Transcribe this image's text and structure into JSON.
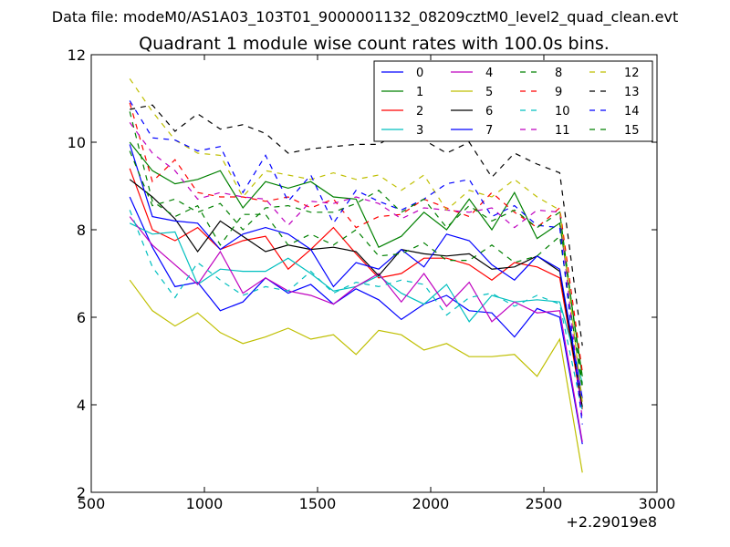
{
  "chart_data": {
    "type": "line",
    "suptitle": "Data file: modeM0/AS1A03_103T01_9000001132_08209cztM0_level2_quad_clean.evt",
    "title": "Quadrant 1 module wise count rates with 100.0s bins.",
    "xlabel": "",
    "ylabel": "",
    "x_offset_label": "+2.29019e8",
    "xlim": [
      500,
      3000
    ],
    "ylim": [
      2,
      12
    ],
    "xticks": [
      500,
      1000,
      1500,
      2000,
      2500,
      3000
    ],
    "yticks": [
      2,
      4,
      6,
      8,
      10,
      12
    ],
    "x": [
      670,
      770,
      870,
      970,
      1070,
      1170,
      1270,
      1370,
      1470,
      1570,
      1670,
      1770,
      1870,
      1970,
      2070,
      2170,
      2270,
      2370,
      2470,
      2570,
      2670
    ],
    "series": [
      {
        "name": "0",
        "color": "#0000ff",
        "dash": "solid",
        "values": [
          8.75,
          7.6,
          6.7,
          6.8,
          6.15,
          6.35,
          6.9,
          6.55,
          6.75,
          6.3,
          6.65,
          6.4,
          5.95,
          6.3,
          6.5,
          6.15,
          6.1,
          5.55,
          6.2,
          6.0,
          3.1
        ]
      },
      {
        "name": "1",
        "color": "#008000",
        "dash": "solid",
        "values": [
          10.0,
          9.35,
          9.05,
          9.15,
          9.35,
          8.5,
          9.1,
          8.95,
          9.1,
          8.75,
          8.7,
          7.6,
          7.85,
          8.4,
          8.0,
          8.7,
          8.0,
          8.85,
          7.8,
          8.15,
          4.65
        ]
      },
      {
        "name": "2",
        "color": "#ff0000",
        "dash": "solid",
        "values": [
          9.4,
          8.0,
          7.75,
          8.05,
          7.55,
          7.75,
          7.85,
          7.1,
          7.55,
          8.05,
          7.45,
          6.9,
          7.0,
          7.35,
          7.35,
          7.2,
          6.85,
          7.25,
          7.15,
          6.9,
          3.9
        ]
      },
      {
        "name": "3",
        "color": "#00bfbf",
        "dash": "solid",
        "values": [
          8.15,
          7.9,
          7.95,
          6.75,
          7.1,
          7.05,
          7.05,
          7.35,
          7.0,
          6.6,
          6.7,
          6.95,
          6.55,
          6.3,
          6.75,
          5.9,
          6.5,
          6.35,
          6.4,
          6.35,
          4.5
        ]
      },
      {
        "name": "4",
        "color": "#bf00bf",
        "dash": "solid",
        "values": [
          8.3,
          7.65,
          7.2,
          6.75,
          7.5,
          6.55,
          6.9,
          6.6,
          6.5,
          6.3,
          6.7,
          7.0,
          6.35,
          7.0,
          6.25,
          6.8,
          5.9,
          6.35,
          6.1,
          6.15,
          3.15
        ]
      },
      {
        "name": "5",
        "color": "#bfbf00",
        "dash": "solid",
        "values": [
          6.85,
          6.15,
          5.8,
          6.1,
          5.65,
          5.4,
          5.55,
          5.75,
          5.5,
          5.6,
          5.15,
          5.7,
          5.6,
          5.25,
          5.4,
          5.1,
          5.1,
          5.15,
          4.65,
          5.5,
          2.45
        ]
      },
      {
        "name": "6",
        "color": "#000000",
        "dash": "solid",
        "values": [
          9.15,
          8.75,
          8.25,
          7.5,
          8.2,
          7.85,
          7.5,
          7.65,
          7.55,
          7.6,
          7.5,
          6.95,
          7.55,
          7.45,
          7.4,
          7.45,
          7.1,
          7.15,
          7.4,
          7.05,
          3.95
        ]
      },
      {
        "name": "7",
        "color": "#0000ff",
        "dash": "solid",
        "values": [
          9.95,
          8.3,
          8.2,
          8.15,
          7.55,
          7.9,
          8.05,
          7.9,
          7.55,
          6.7,
          7.25,
          7.1,
          7.55,
          7.15,
          7.9,
          7.75,
          7.2,
          6.85,
          7.4,
          7.1,
          4.15
        ]
      },
      {
        "name": "8",
        "color": "#008000",
        "dash": "dashed",
        "values": [
          10.7,
          8.65,
          8.3,
          8.55,
          7.65,
          8.35,
          8.35,
          7.65,
          7.9,
          7.65,
          8.0,
          7.4,
          7.45,
          7.7,
          7.3,
          7.3,
          7.65,
          7.25,
          7.4,
          7.85,
          4.35
        ]
      },
      {
        "name": "9",
        "color": "#ff0000",
        "dash": "dashed",
        "values": [
          10.9,
          9.1,
          9.6,
          8.85,
          8.75,
          8.75,
          8.65,
          8.75,
          8.5,
          8.7,
          8.05,
          8.3,
          8.35,
          8.7,
          8.5,
          8.3,
          8.85,
          8.4,
          8.05,
          8.5,
          4.75
        ]
      },
      {
        "name": "10",
        "color": "#00bfbf",
        "dash": "dashed",
        "values": [
          8.45,
          7.15,
          6.45,
          7.25,
          6.85,
          6.5,
          6.7,
          6.6,
          7.05,
          6.55,
          6.8,
          6.7,
          6.85,
          6.75,
          6.05,
          6.45,
          6.55,
          6.25,
          6.5,
          6.3,
          3.85
        ]
      },
      {
        "name": "11",
        "color": "#bf00bf",
        "dash": "dashed",
        "values": [
          10.45,
          9.75,
          9.35,
          8.7,
          8.85,
          8.75,
          8.7,
          8.1,
          8.65,
          8.6,
          8.75,
          8.6,
          8.25,
          8.5,
          8.45,
          8.4,
          8.5,
          8.05,
          8.45,
          8.4,
          3.65
        ]
      },
      {
        "name": "12",
        "color": "#bfbf00",
        "dash": "dashed",
        "values": [
          11.45,
          10.7,
          10.05,
          9.75,
          9.7,
          8.75,
          9.35,
          9.25,
          9.15,
          9.3,
          9.15,
          9.25,
          8.9,
          9.25,
          8.45,
          8.9,
          8.75,
          9.15,
          8.75,
          8.45,
          4.05
        ]
      },
      {
        "name": "13",
        "color": "#000000",
        "dash": "dashed",
        "values": [
          10.75,
          10.85,
          10.25,
          10.65,
          10.3,
          10.4,
          10.2,
          9.75,
          9.85,
          9.9,
          9.95,
          9.95,
          10.25,
          10.05,
          9.75,
          10.0,
          9.2,
          9.75,
          9.5,
          9.3,
          5.35
        ]
      },
      {
        "name": "14",
        "color": "#0000ff",
        "dash": "dashed",
        "values": [
          10.95,
          10.1,
          10.05,
          9.8,
          9.9,
          8.85,
          9.7,
          8.65,
          9.25,
          8.15,
          8.9,
          8.65,
          8.45,
          8.7,
          9.05,
          9.15,
          8.3,
          8.55,
          8.1,
          8.05,
          3.55
        ]
      },
      {
        "name": "15",
        "color": "#008000",
        "dash": "dashed",
        "values": [
          9.8,
          8.55,
          8.7,
          8.4,
          8.6,
          8.0,
          8.5,
          8.55,
          8.4,
          8.4,
          8.6,
          8.9,
          8.4,
          8.7,
          8.05,
          8.55,
          8.2,
          8.45,
          8.05,
          8.4,
          4.45
        ]
      }
    ],
    "legend": {
      "position": "top-right",
      "columns": 4
    }
  }
}
